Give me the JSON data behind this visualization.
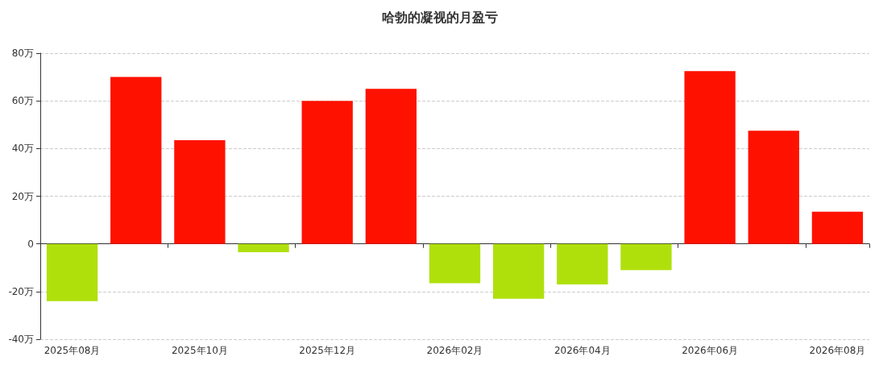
{
  "chart_data": {
    "type": "bar",
    "title": "哈勃的凝视的月盈亏",
    "categories": [
      "2025年08月",
      null,
      "2025年10月",
      null,
      "2025年12月",
      null,
      "2026年02月",
      null,
      "2026年04月",
      null,
      "2026年06月",
      null,
      "2026年08月"
    ],
    "values": [
      -24,
      70,
      43.5,
      -3.5,
      60,
      65,
      -16.5,
      -23,
      -17,
      -11,
      72.5,
      47.5,
      13.5
    ],
    "colors": [
      "#b0e00c",
      "#ff1100",
      "#ff1100",
      "#b0e00c",
      "#ff1100",
      "#ff1100",
      "#b0e00c",
      "#b0e00c",
      "#b0e00c",
      "#b0e00c",
      "#ff1100",
      "#ff1100",
      "#ff1100"
    ],
    "ylim": [
      -40,
      80
    ],
    "yticks": [
      {
        "value": -40,
        "label": "-40万"
      },
      {
        "value": -20,
        "label": "-20万"
      },
      0,
      {
        "value": 20,
        "label": "20万"
      },
      {
        "value": 40,
        "label": "40万"
      },
      {
        "value": 60,
        "label": "60万"
      },
      {
        "value": 80,
        "label": "80万"
      }
    ],
    "grid": "y"
  }
}
